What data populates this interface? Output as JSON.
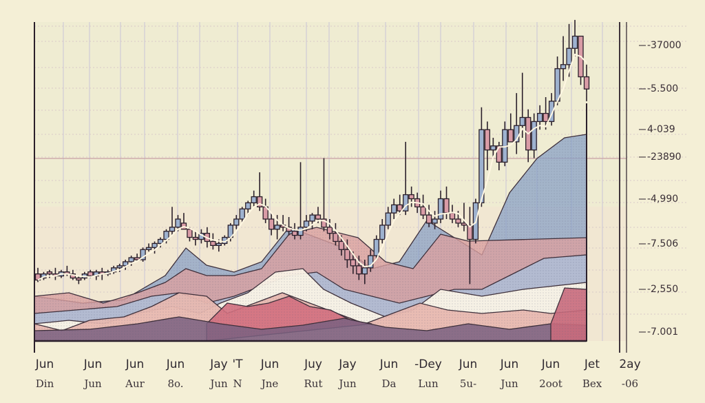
{
  "chart_data": {
    "type": "candlestick",
    "title": "",
    "xlabel": "",
    "ylabel": "",
    "grid": true,
    "legend": "none",
    "y_ticks": [
      "-37000",
      "-5.500",
      "4-039",
      "-23890",
      "-4,990",
      "-7.506",
      "-2,550",
      "-7.001"
    ],
    "x_ticks_primary": [
      "Jun",
      "Jun",
      "Jun",
      "Jun",
      "Jay",
      "'T",
      "Jun",
      "Juy",
      "Jay",
      "Jun",
      "-Dey",
      "Jun",
      "Jun",
      "Jun",
      "Jet",
      "2ay"
    ],
    "x_ticks_secondary": [
      "Din",
      "Jun",
      "Aur",
      "8o.",
      "Jun",
      "N",
      "Jne",
      "Rut",
      "Jun",
      "Da",
      "Lun",
      "5u-",
      "Jun",
      "2oot",
      "Bex",
      "-06"
    ],
    "y_scale_note": "index 0 at bottom, 100 at top",
    "candles": [
      [
        33,
        36,
        29,
        30
      ],
      [
        31,
        34,
        30,
        33
      ],
      [
        34,
        35,
        31,
        33
      ],
      [
        33,
        36,
        30,
        32
      ],
      [
        32,
        35,
        31,
        34
      ],
      [
        34,
        37,
        32,
        33
      ],
      [
        33,
        35,
        30,
        31
      ],
      [
        31,
        32,
        28,
        30
      ],
      [
        31,
        34,
        30,
        33
      ],
      [
        34,
        35,
        31,
        32
      ],
      [
        32,
        35,
        30,
        34
      ],
      [
        34,
        36,
        30,
        33
      ],
      [
        33,
        35,
        32,
        34
      ],
      [
        34,
        37,
        33,
        36
      ],
      [
        36,
        38,
        34,
        37
      ],
      [
        37,
        40,
        35,
        39
      ],
      [
        39,
        42,
        37,
        41
      ],
      [
        41,
        43,
        39,
        40
      ],
      [
        40,
        46,
        39,
        45
      ],
      [
        45,
        48,
        44,
        46
      ],
      [
        46,
        49,
        43,
        48
      ],
      [
        48,
        51,
        46,
        50
      ],
      [
        50,
        55,
        48,
        54
      ],
      [
        54,
        66,
        52,
        56
      ],
      [
        56,
        62,
        54,
        60
      ],
      [
        58,
        63,
        55,
        55
      ],
      [
        55,
        56,
        49,
        51
      ],
      [
        51,
        54,
        47,
        50
      ],
      [
        50,
        55,
        48,
        53
      ],
      [
        53,
        56,
        46,
        49
      ],
      [
        49,
        53,
        45,
        47
      ],
      [
        47,
        50,
        44,
        48
      ],
      [
        48,
        52,
        47,
        51
      ],
      [
        51,
        58,
        49,
        57
      ],
      [
        57,
        62,
        55,
        60
      ],
      [
        60,
        66,
        58,
        65
      ],
      [
        65,
        69,
        62,
        68
      ],
      [
        68,
        74,
        66,
        71
      ],
      [
        71,
        83,
        64,
        66
      ],
      [
        66,
        70,
        58,
        60
      ],
      [
        60,
        63,
        52,
        55
      ],
      [
        55,
        62,
        50,
        57
      ],
      [
        57,
        62,
        54,
        56
      ],
      [
        56,
        61,
        52,
        54
      ],
      [
        54,
        58,
        50,
        52
      ],
      [
        52,
        88,
        50,
        56
      ],
      [
        56,
        62,
        54,
        59
      ],
      [
        59,
        63,
        55,
        62
      ],
      [
        62,
        66,
        58,
        60
      ],
      [
        60,
        90,
        54,
        56
      ],
      [
        56,
        60,
        50,
        53
      ],
      [
        53,
        58,
        47,
        49
      ],
      [
        49,
        52,
        42,
        45
      ],
      [
        45,
        50,
        36,
        40
      ],
      [
        40,
        44,
        33,
        37
      ],
      [
        37,
        42,
        30,
        33
      ],
      [
        33,
        40,
        28,
        36
      ],
      [
        36,
        45,
        34,
        42
      ],
      [
        42,
        52,
        40,
        50
      ],
      [
        50,
        60,
        48,
        57
      ],
      [
        57,
        66,
        55,
        63
      ],
      [
        63,
        70,
        60,
        67
      ],
      [
        67,
        72,
        62,
        64
      ],
      [
        64,
        98,
        62,
        72
      ],
      [
        72,
        76,
        66,
        70
      ],
      [
        70,
        73,
        63,
        66
      ],
      [
        66,
        72,
        60,
        62
      ],
      [
        62,
        67,
        56,
        58
      ],
      [
        58,
        64,
        55,
        60
      ],
      [
        60,
        74,
        58,
        70
      ],
      [
        70,
        76,
        60,
        63
      ],
      [
        63,
        67,
        58,
        60
      ],
      [
        60,
        64,
        56,
        58
      ],
      [
        58,
        68,
        54,
        57
      ],
      [
        57,
        66,
        28,
        50
      ],
      [
        50,
        70,
        48,
        68
      ],
      [
        68,
        115,
        66,
        104
      ],
      [
        104,
        108,
        84,
        94
      ],
      [
        94,
        100,
        90,
        96
      ],
      [
        96,
        98,
        84,
        88
      ],
      [
        88,
        108,
        86,
        104
      ],
      [
        104,
        112,
        98,
        98
      ],
      [
        98,
        122,
        92,
        106
      ],
      [
        106,
        132,
        100,
        110
      ],
      [
        110,
        114,
        88,
        94
      ],
      [
        94,
        112,
        90,
        108
      ],
      [
        108,
        116,
        104,
        112
      ],
      [
        112,
        120,
        104,
        108
      ],
      [
        108,
        122,
        106,
        118
      ],
      [
        118,
        140,
        116,
        134
      ],
      [
        134,
        150,
        128,
        136
      ],
      [
        136,
        156,
        130,
        144
      ],
      [
        144,
        158,
        140,
        150
      ],
      [
        150,
        150,
        126,
        130
      ],
      [
        130,
        136,
        118,
        124
      ]
    ]
  }
}
